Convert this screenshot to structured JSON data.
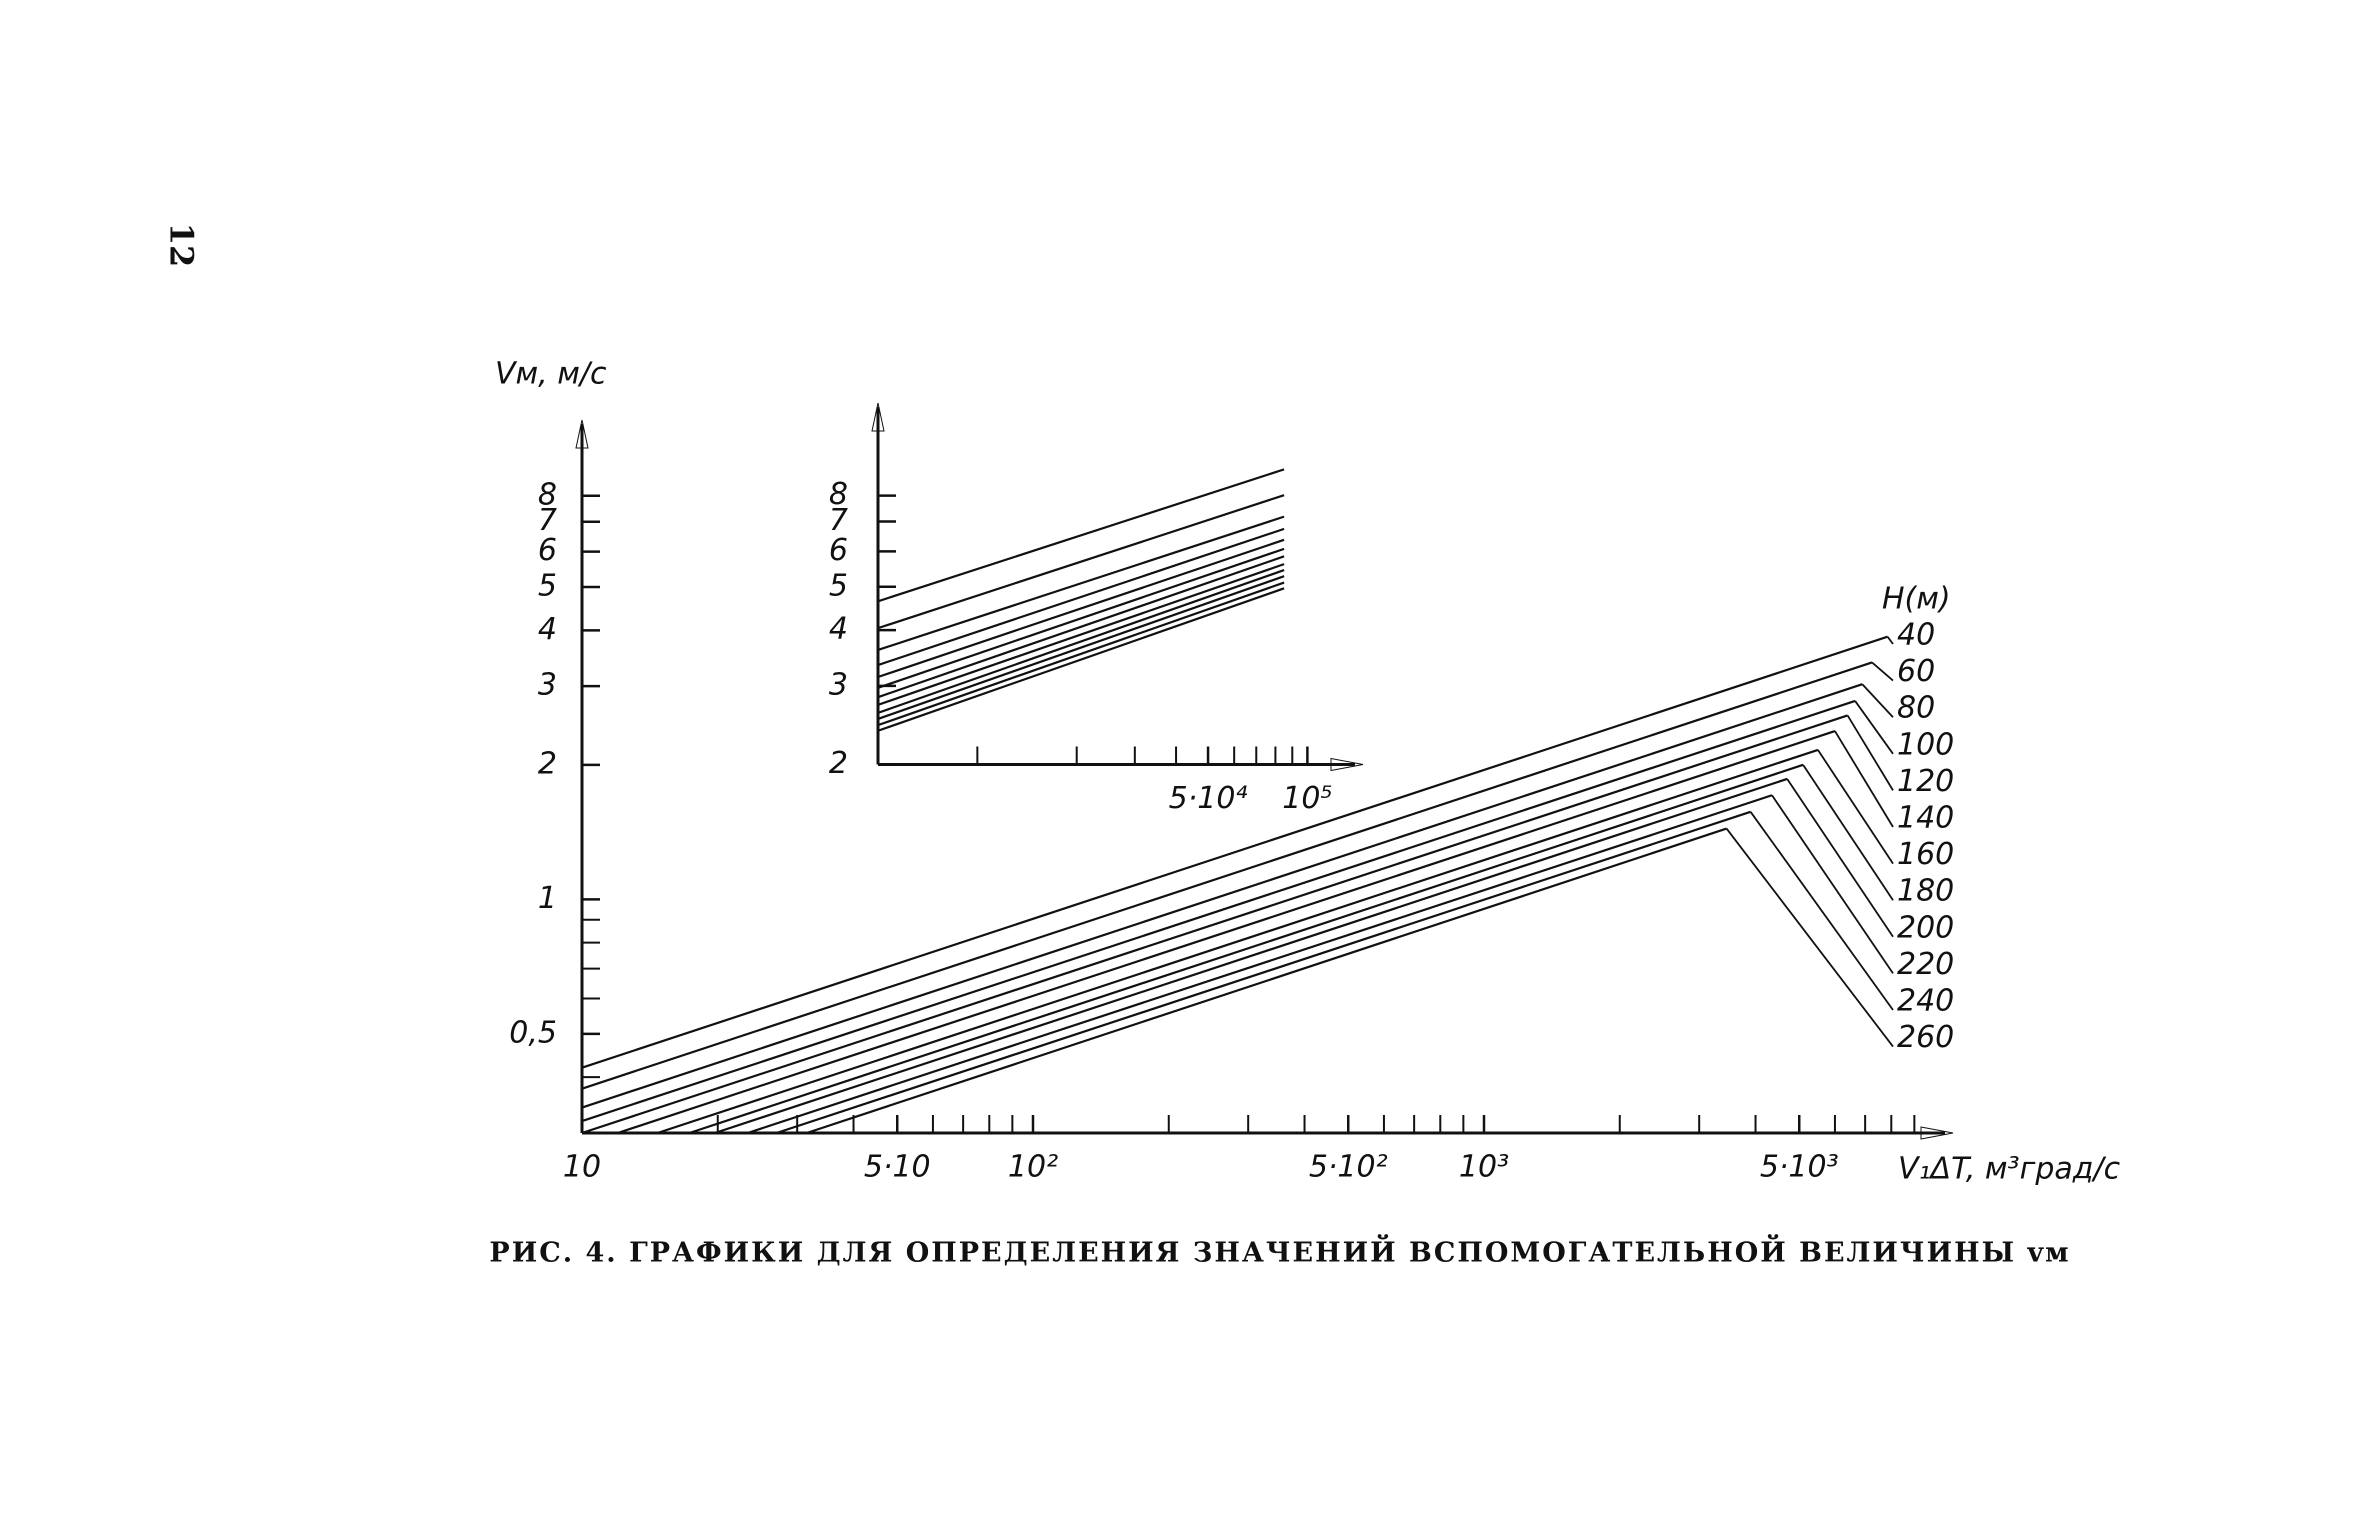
{
  "page_number": "12",
  "caption": "РИС. 4. ГРАФИКИ ДЛЯ ОПРЕДЕЛЕНИЯ ЗНАЧЕНИЙ ВСПОМОГАТЕЛЬНОЙ ВЕЛИЧИНЫ vм",
  "chart_data": [
    {
      "type": "line",
      "log_x": true,
      "log_y": true,
      "color": "#111111",
      "y_label": "Vм, м/с",
      "x_label": "V₁ΔT, м³град/с",
      "legend_title": "H(м)",
      "xlim": [
        10,
        10000
      ],
      "ylim": [
        0.3,
        11
      ],
      "xticks": [
        10,
        {
          "value": 50,
          "label": "5·10"
        },
        {
          "value": 100,
          "label": "10²"
        },
        {
          "value": 500,
          "label": "5·10²"
        },
        {
          "value": 1000,
          "label": "10³"
        },
        {
          "value": 5000,
          "label": "5·10³"
        }
      ],
      "minor_xticks": [
        20,
        30,
        40,
        60,
        70,
        80,
        90,
        200,
        300,
        400,
        600,
        700,
        800,
        900,
        2000,
        3000,
        4000,
        6000,
        7000,
        8000,
        9000
      ],
      "yticks": [
        {
          "value": 0.5,
          "label": "0,5"
        },
        1,
        2,
        3,
        4,
        5,
        6,
        7,
        8
      ],
      "minor_yticks": [
        0.4,
        0.6,
        0.7,
        0.8,
        0.9
      ],
      "series": [
        {
          "name": "40",
          "x": [
            10,
            7850
          ],
          "values": [
            0.42,
            3.87
          ]
        },
        {
          "name": "60",
          "x": [
            10,
            7250
          ],
          "values": [
            0.377,
            3.39
          ]
        },
        {
          "name": "80",
          "x": [
            10,
            6900
          ],
          "values": [
            0.342,
            3.03
          ]
        },
        {
          "name": "100",
          "x": [
            10,
            6650
          ],
          "values": [
            0.319,
            2.78
          ]
        },
        {
          "name": "120",
          "x": [
            10,
            6400
          ],
          "values": [
            0.3,
            2.58
          ]
        },
        {
          "name": "140",
          "x": [
            12,
            6000
          ],
          "values": [
            0.3,
            2.38
          ]
        },
        {
          "name": "160",
          "x": [
            14.7,
            5500
          ],
          "values": [
            0.3,
            2.16
          ]
        },
        {
          "name": "180",
          "x": [
            17.3,
            5100
          ],
          "values": [
            0.3,
            2.0
          ]
        },
        {
          "name": "200",
          "x": [
            19.7,
            4700
          ],
          "values": [
            0.3,
            1.86
          ]
        },
        {
          "name": "220",
          "x": [
            23.3,
            4350
          ],
          "values": [
            0.3,
            1.71
          ]
        },
        {
          "name": "240",
          "x": [
            27,
            3900
          ],
          "values": [
            0.3,
            1.57
          ]
        },
        {
          "name": "260",
          "x": [
            31.5,
            3450
          ],
          "values": [
            0.3,
            1.44
          ]
        }
      ]
    },
    {
      "type": "line",
      "log_x": true,
      "log_y": true,
      "color": "#111111",
      "xlim": [
        5000,
        130000
      ],
      "ylim": [
        2,
        12
      ],
      "xticks": [
        {
          "value": 50000,
          "label": "5·10⁴"
        },
        {
          "value": 100000,
          "label": "10⁵"
        }
      ],
      "minor_xticks": [
        10000,
        20000,
        30000,
        40000,
        60000,
        70000,
        80000,
        90000
      ],
      "yticks": [
        2,
        3,
        4,
        5,
        6,
        7,
        8
      ],
      "series": [
        {
          "x": [
            5000,
            85000
          ],
          "values": [
            4.64,
            9.16
          ]
        },
        {
          "x": [
            5000,
            85000
          ],
          "values": [
            4.04,
            8.02
          ]
        },
        {
          "x": [
            5000,
            85000
          ],
          "values": [
            3.61,
            7.18
          ]
        },
        {
          "x": [
            5000,
            85000
          ],
          "values": [
            3.34,
            6.74
          ]
        },
        {
          "x": [
            5000,
            85000
          ],
          "values": [
            3.14,
            6.37
          ]
        },
        {
          "x": [
            5000,
            85000
          ],
          "values": [
            2.97,
            6.08
          ]
        },
        {
          "x": [
            5000,
            85000
          ],
          "values": [
            2.83,
            5.85
          ]
        },
        {
          "x": [
            5000,
            85000
          ],
          "values": [
            2.72,
            5.62
          ]
        },
        {
          "x": [
            5000,
            85000
          ],
          "values": [
            2.61,
            5.45
          ]
        },
        {
          "x": [
            5000,
            85000
          ],
          "values": [
            2.53,
            5.28
          ]
        },
        {
          "x": [
            5000,
            85000
          ],
          "values": [
            2.45,
            5.11
          ]
        },
        {
          "x": [
            5000,
            85000
          ],
          "values": [
            2.38,
            4.96
          ]
        }
      ]
    }
  ]
}
